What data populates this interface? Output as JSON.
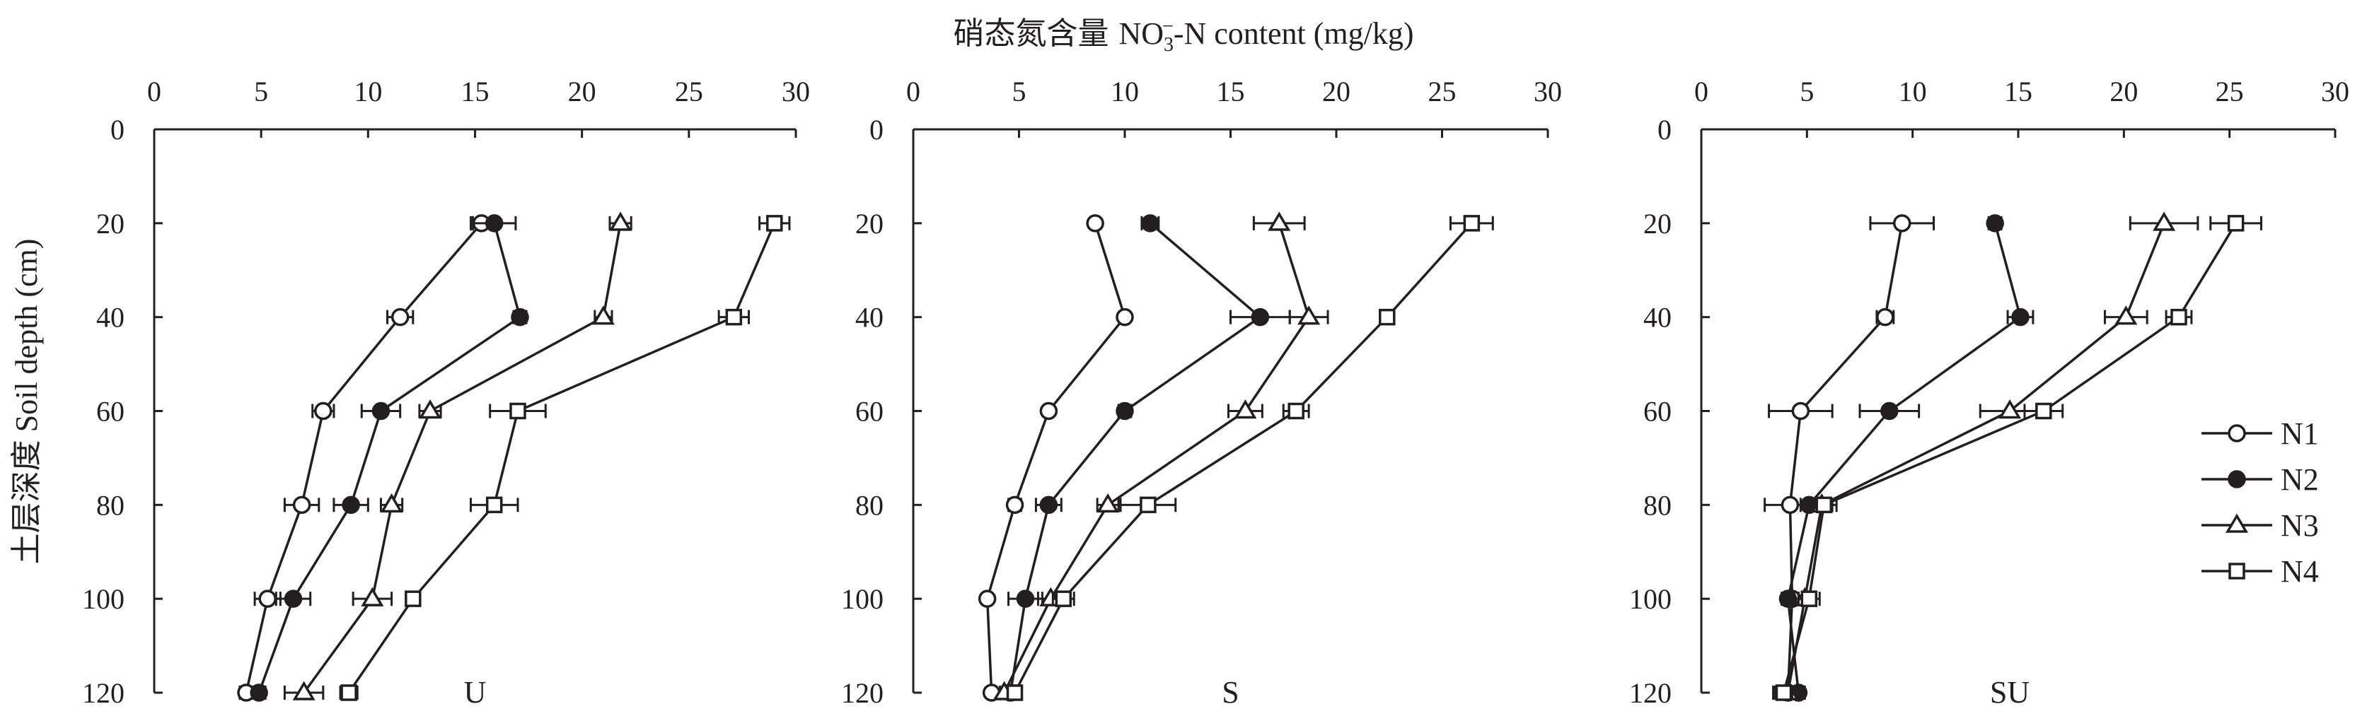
{
  "x_axis_title_zh": "硝态氮含量",
  "x_axis_title_en_prefix": "NO",
  "x_axis_title_sub": "3",
  "x_axis_title_sup": "−",
  "x_axis_title_en_suffix": "-N content (mg/kg)",
  "y_axis_title": "土层深度 Soil depth (cm)",
  "legend": [
    "N1",
    "N2",
    "N3",
    "N4"
  ],
  "series_styles": [
    {
      "name": "N1",
      "marker": "circle",
      "fill": "#ffffff"
    },
    {
      "name": "N2",
      "marker": "circle",
      "fill": "#231f20"
    },
    {
      "name": "N3",
      "marker": "triangle",
      "fill": "#ffffff"
    },
    {
      "name": "N4",
      "marker": "square",
      "fill": "#ffffff"
    }
  ],
  "line_color": "#231f20",
  "chart_data": [
    {
      "type": "line",
      "panel_label": "U",
      "xlim": [
        0,
        30
      ],
      "x_ticks": [
        0,
        5,
        10,
        15,
        20,
        25,
        30
      ],
      "y_ticks": [
        0,
        20,
        40,
        60,
        80,
        100,
        120
      ],
      "ylim": [
        0,
        120
      ],
      "y_reversed": true,
      "depths": [
        20,
        40,
        60,
        80,
        100,
        120
      ],
      "series": [
        {
          "name": "N1",
          "values": [
            15.3,
            11.5,
            7.9,
            6.9,
            5.3,
            4.3
          ],
          "errors": [
            0.5,
            0.6,
            0.5,
            0.8,
            0.6,
            0.3
          ]
        },
        {
          "name": "N2",
          "values": [
            15.9,
            17.1,
            10.6,
            9.2,
            6.5,
            4.9
          ],
          "errors": [
            1.0,
            0.3,
            0.9,
            0.8,
            0.8,
            0.3
          ]
        },
        {
          "name": "N3",
          "values": [
            21.8,
            21.0,
            12.9,
            11.1,
            10.2,
            7.0
          ],
          "errors": [
            0.5,
            0.4,
            0.5,
            0.5,
            0.9,
            0.9
          ]
        },
        {
          "name": "N4",
          "values": [
            29.0,
            27.1,
            17.0,
            15.9,
            12.1,
            9.1
          ],
          "errors": [
            0.7,
            0.7,
            1.3,
            1.1,
            0.3,
            0.4
          ]
        }
      ]
    },
    {
      "type": "line",
      "panel_label": "S",
      "xlim": [
        0,
        30
      ],
      "x_ticks": [
        0,
        5,
        10,
        15,
        20,
        25,
        30
      ],
      "y_ticks": [
        0,
        20,
        40,
        60,
        80,
        100,
        120
      ],
      "ylim": [
        0,
        120
      ],
      "y_reversed": true,
      "depths": [
        20,
        40,
        60,
        80,
        100,
        120
      ],
      "series": [
        {
          "name": "N1",
          "values": [
            8.6,
            10.0,
            6.4,
            4.8,
            3.5,
            3.7
          ],
          "errors": [
            0.2,
            0.2,
            0.2,
            0.3,
            0.2,
            0.2
          ]
        },
        {
          "name": "N2",
          "values": [
            11.2,
            16.4,
            10.0,
            6.4,
            5.3,
            4.6
          ],
          "errors": [
            0.4,
            1.4,
            0.3,
            0.6,
            0.8,
            0.3
          ]
        },
        {
          "name": "N3",
          "values": [
            17.3,
            18.7,
            15.7,
            9.2,
            6.5,
            4.3
          ],
          "errors": [
            1.2,
            0.9,
            0.8,
            0.5,
            0.6,
            0.2
          ]
        },
        {
          "name": "N4",
          "values": [
            26.4,
            22.4,
            18.1,
            11.1,
            7.1,
            4.8
          ],
          "errors": [
            1.0,
            0.3,
            0.6,
            1.3,
            0.5,
            0.3
          ]
        }
      ]
    },
    {
      "type": "line",
      "panel_label": "SU",
      "xlim": [
        0,
        30
      ],
      "x_ticks": [
        0,
        5,
        10,
        15,
        20,
        25,
        30
      ],
      "y_ticks": [
        0,
        20,
        40,
        60,
        80,
        100,
        120
      ],
      "ylim": [
        0,
        120
      ],
      "y_reversed": true,
      "depths": [
        20,
        40,
        60,
        80,
        100,
        120
      ],
      "series": [
        {
          "name": "N1",
          "values": [
            9.5,
            8.7,
            4.7,
            4.2,
            4.3,
            4.1
          ],
          "errors": [
            1.5,
            0.4,
            1.5,
            1.2,
            0.3,
            0.7
          ]
        },
        {
          "name": "N2",
          "values": [
            13.9,
            15.1,
            8.9,
            5.1,
            4.1,
            4.6
          ],
          "errors": [
            0.3,
            0.6,
            1.4,
            0.4,
            0.3,
            0.3
          ]
        },
        {
          "name": "N3",
          "values": [
            21.9,
            20.1,
            14.6,
            5.7,
            4.9,
            4.1
          ],
          "errors": [
            1.6,
            1.0,
            1.4,
            0.5,
            0.5,
            0.4
          ]
        },
        {
          "name": "N4",
          "values": [
            25.3,
            22.6,
            16.2,
            5.8,
            5.1,
            3.9
          ],
          "errors": [
            1.2,
            0.6,
            0.9,
            0.6,
            0.5,
            0.4
          ]
        }
      ]
    }
  ]
}
